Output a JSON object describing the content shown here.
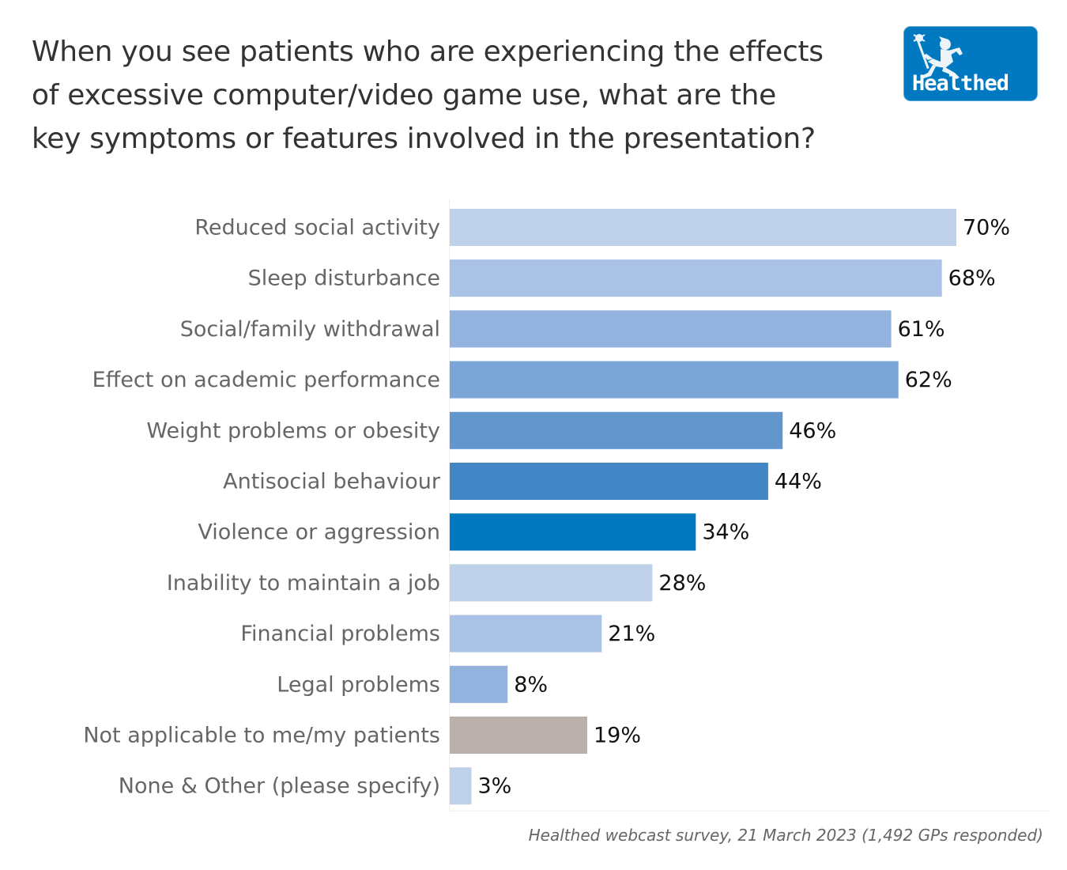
{
  "title_lines": [
    "When you see patients who are experiencing the effects",
    "of excessive computer/video game use, what are the",
    "key symptoms or features involved in the presentation?"
  ],
  "logo": {
    "text": "Healthed",
    "icon": "hermes-runner-icon",
    "color": "#0079c1"
  },
  "footnote": "Healthed webcast survey, 21 March 2023 (1,492 GPs responded)",
  "chart_data": {
    "type": "bar",
    "orientation": "horizontal",
    "title": "When you see patients who are experiencing the effects of excessive computer/video game use, what are the key symptoms or features involved in the presentation?",
    "xlabel": "",
    "ylabel": "",
    "xlim": [
      0,
      76
    ],
    "grid": false,
    "legend": "none",
    "value_suffix": "%",
    "categories": [
      "Reduced social activity",
      "Sleep disturbance",
      "Social/family withdrawal",
      "Effect on academic performance",
      "Weight problems or obesity",
      "Antisocial behaviour",
      "Violence or aggression",
      "Inability to maintain a job",
      "Financial problems",
      "Legal problems",
      "Not applicable to me/my patients",
      "None & Other (please specify)"
    ],
    "values": [
      70,
      68,
      61,
      62,
      46,
      44,
      34,
      28,
      21,
      8,
      19,
      3
    ],
    "colors": [
      "#bfd0e9",
      "#a9c2e6",
      "#94b2de",
      "#7ba5d7",
      "#6496ce",
      "#4286c6",
      "#0079c1",
      "#bfd0e9",
      "#a9c2e6",
      "#94b2de",
      "#b9b0ab",
      "#bfd0e9"
    ]
  }
}
